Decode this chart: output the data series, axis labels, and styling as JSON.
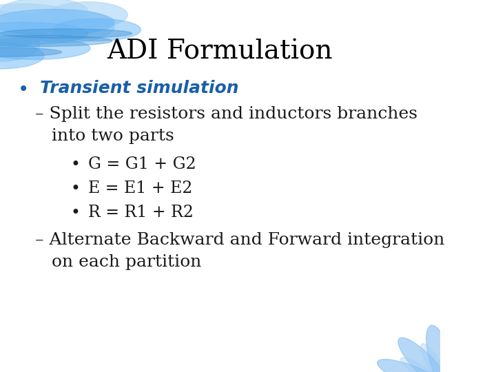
{
  "title": "ADI Formulation",
  "title_fontsize": 28,
  "title_color": "#000000",
  "title_font": "serif",
  "bg_color": "#ffffff",
  "bullet1_text": "Transient simulation",
  "bullet1_color": "#1a5fa8",
  "bullet1_fontsize": 18,
  "bullet1_bold": true,
  "sub1_text": "– Split the resistors and inductors branches\n   into two parts",
  "sub1_fontsize": 18,
  "sub1_color": "#1a1a1a",
  "sub_bullets": [
    "G = G1 + G2",
    "E = E1 + E2",
    "R = R1 + R2"
  ],
  "sub_bullet_fontsize": 17,
  "sub_bullet_color": "#1a1a1a",
  "sub2_text": "– Alternate Backward and Forward integration\n   on each partition",
  "sub2_fontsize": 18,
  "sub2_color": "#1a1a1a",
  "top_cloud_color": "#5aaaf0",
  "flower_color": "#7ab0e8"
}
